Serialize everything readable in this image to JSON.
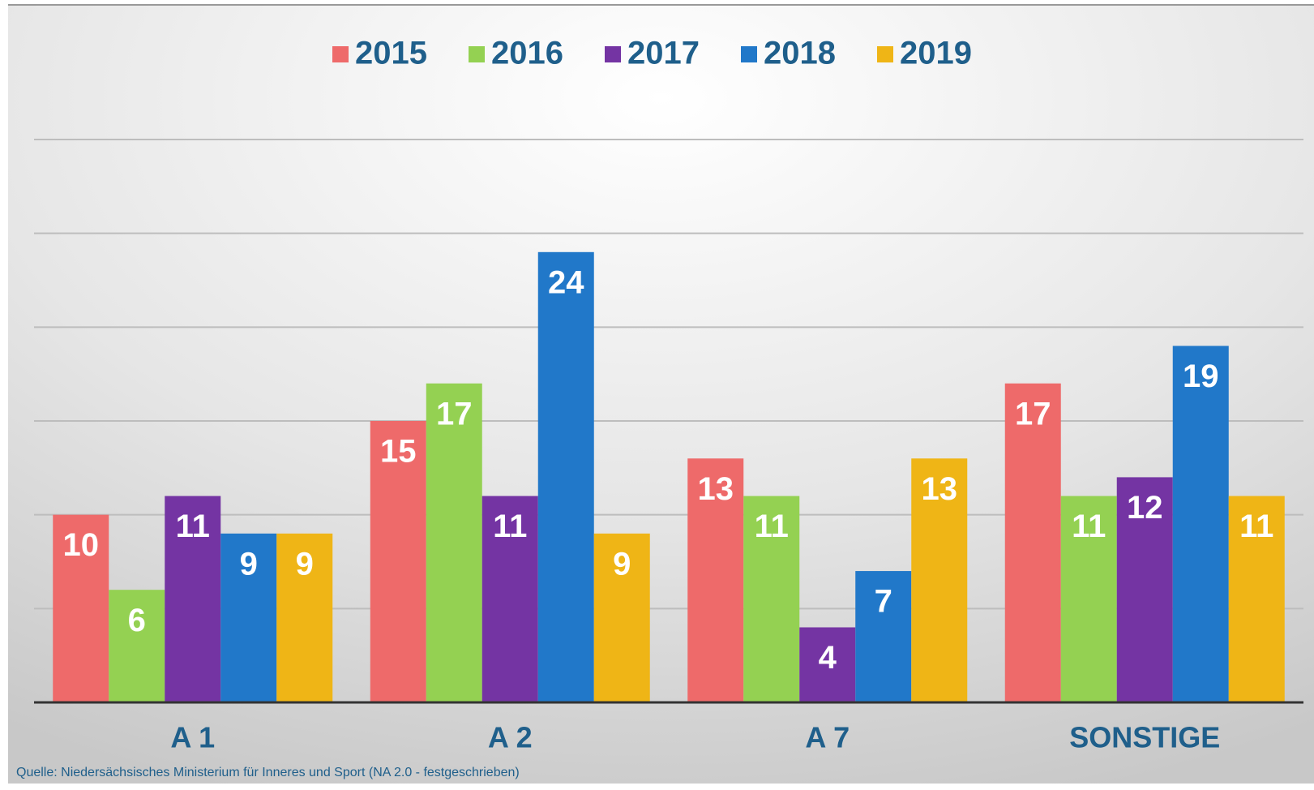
{
  "chart_data": {
    "type": "bar",
    "categories": [
      "A 1",
      "A 2",
      "A 7",
      "SONSTIGE"
    ],
    "series": [
      {
        "name": "2015",
        "color": "#ee6a6a",
        "values": [
          10,
          15,
          13,
          17
        ]
      },
      {
        "name": "2016",
        "color": "#94d152",
        "values": [
          6,
          17,
          11,
          11
        ]
      },
      {
        "name": "2017",
        "color": "#7434a3",
        "values": [
          11,
          11,
          4,
          12
        ]
      },
      {
        "name": "2018",
        "color": "#2178c9",
        "values": [
          9,
          24,
          7,
          19
        ]
      },
      {
        "name": "2019",
        "color": "#efb516",
        "values": [
          9,
          9,
          13,
          11
        ]
      }
    ],
    "ylim": [
      0,
      30
    ],
    "yticks": [
      0,
      5,
      10,
      15,
      20,
      25,
      30
    ],
    "grid": true,
    "legend": "top",
    "source": "Quelle: Niedersächsisches Ministerium für Inneres und Sport (NA 2.0 - festgeschrieben)"
  }
}
